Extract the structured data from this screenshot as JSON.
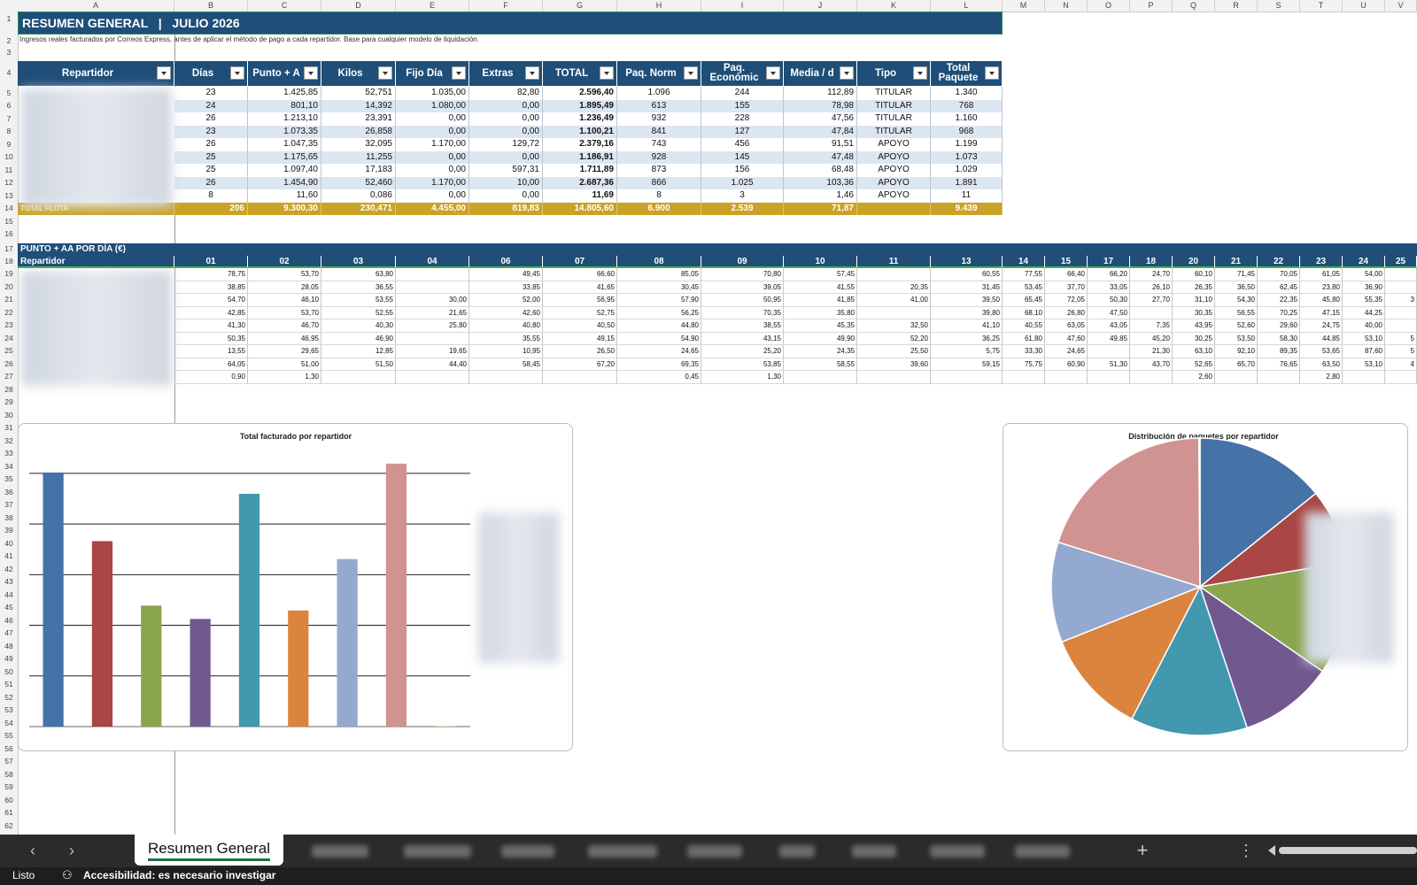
{
  "columns": [
    "A",
    "B",
    "C",
    "D",
    "E",
    "F",
    "G",
    "H",
    "I",
    "J",
    "K",
    "L",
    "M",
    "N",
    "O",
    "P",
    "Q",
    "R",
    "S",
    "T",
    "U",
    "V"
  ],
  "rows": [
    "1",
    "2",
    "3",
    "4",
    "5",
    "6",
    "7",
    "8",
    "9",
    "10",
    "11",
    "12",
    "13",
    "14",
    "15",
    "16",
    "17",
    "18",
    "19",
    "20",
    "21",
    "22",
    "23",
    "24",
    "25",
    "26",
    "27",
    "28",
    "29",
    "30",
    "31",
    "32",
    "33",
    "34",
    "35",
    "36",
    "37",
    "38",
    "39",
    "40",
    "41",
    "42",
    "43",
    "44",
    "45",
    "46",
    "47",
    "48",
    "49",
    "50",
    "51",
    "52",
    "53",
    "54",
    "55",
    "56",
    "57",
    "58",
    "59",
    "60",
    "61",
    "62"
  ],
  "banner": {
    "title": "RESUMEN GENERAL   |   JULIO 2026"
  },
  "subtitle": "Ingresos reales facturados por Correos Express, antes de aplicar el método de pago a cada repartidor. Base para cualquier modelo de liquidación.",
  "summary_table": {
    "headers": [
      "Repartidor",
      "Días",
      "Punto + A",
      "Kilos",
      "Fijo Día",
      "Extras",
      "TOTAL",
      "Paq. Norm",
      "Paq.\nEconómic",
      "Media / d",
      "Tipo",
      "Total\nPaquete"
    ],
    "rows": [
      [
        "23",
        "1.425,85",
        "52,751",
        "1.035,00",
        "82,80",
        "2.596,40",
        "1.096",
        "244",
        "112,89",
        "TITULAR",
        "1.340"
      ],
      [
        "24",
        "801,10",
        "14,392",
        "1.080,00",
        "0,00",
        "1.895,49",
        "613",
        "155",
        "78,98",
        "TITULAR",
        "768"
      ],
      [
        "26",
        "1.213,10",
        "23,391",
        "0,00",
        "0,00",
        "1.236,49",
        "932",
        "228",
        "47,56",
        "TITULAR",
        "1.160"
      ],
      [
        "23",
        "1.073,35",
        "26,858",
        "0,00",
        "0,00",
        "1.100,21",
        "841",
        "127",
        "47,84",
        "TITULAR",
        "968"
      ],
      [
        "26",
        "1.047,35",
        "32,095",
        "1.170,00",
        "129,72",
        "2.379,16",
        "743",
        "456",
        "91,51",
        "APOYO",
        "1.199"
      ],
      [
        "25",
        "1.175,65",
        "11,255",
        "0,00",
        "0,00",
        "1.186,91",
        "928",
        "145",
        "47,48",
        "APOYO",
        "1.073"
      ],
      [
        "25",
        "1.097,40",
        "17,183",
        "0,00",
        "597,31",
        "1.711,89",
        "873",
        "156",
        "68,48",
        "APOYO",
        "1.029"
      ],
      [
        "26",
        "1.454,90",
        "52,460",
        "1.170,00",
        "10,00",
        "2.687,36",
        "866",
        "1.025",
        "103,36",
        "APOYO",
        "1.891"
      ],
      [
        "8",
        "11,60",
        "0,086",
        "0,00",
        "0,00",
        "11,69",
        "8",
        "3",
        "1,46",
        "APOYO",
        "11"
      ]
    ],
    "total": [
      "TOTAL FLOTA",
      "206",
      "9.300,30",
      "230,471",
      "4.455,00",
      "819,83",
      "14.805,60",
      "6.900",
      "2.539",
      "71,87",
      "",
      "9.439"
    ]
  },
  "daily_section": {
    "title": "PUNTO + AA POR DÍA (€)",
    "header_label": "Repartidor",
    "days": [
      "01",
      "02",
      "03",
      "04",
      "06",
      "07",
      "08",
      "09",
      "10",
      "11",
      "13",
      "14",
      "15",
      "17",
      "18",
      "20",
      "21",
      "22",
      "23",
      "24",
      "25"
    ],
    "rows": [
      [
        "78,75",
        "53,70",
        "63,80",
        "",
        "49,45",
        "66,60",
        "85,05",
        "70,80",
        "57,45",
        "",
        "60,55",
        "77,55",
        "66,40",
        "66,20",
        "24,70",
        "60,10",
        "71,45",
        "70,05",
        "61,05",
        "54,00",
        ""
      ],
      [
        "38,85",
        "28,05",
        "36,55",
        "",
        "33,85",
        "41,65",
        "30,45",
        "39,05",
        "41,55",
        "20,35",
        "31,45",
        "53,45",
        "37,70",
        "33,05",
        "26,10",
        "26,35",
        "36,50",
        "62,45",
        "23,80",
        "36,90",
        ""
      ],
      [
        "54,70",
        "46,10",
        "53,55",
        "30,00",
        "52,00",
        "56,95",
        "57,90",
        "50,95",
        "41,85",
        "41,00",
        "39,50",
        "65,45",
        "72,05",
        "50,30",
        "27,70",
        "31,10",
        "54,30",
        "22,35",
        "45,80",
        "55,35",
        "3"
      ],
      [
        "42,85",
        "53,70",
        "52,55",
        "21,65",
        "42,60",
        "52,75",
        "56,25",
        "70,35",
        "35,80",
        "",
        "39,80",
        "68,10",
        "26,80",
        "47,50",
        "",
        "30,35",
        "56,55",
        "70,25",
        "47,15",
        "44,25",
        ""
      ],
      [
        "41,30",
        "46,70",
        "40,30",
        "25,80",
        "40,80",
        "40,50",
        "44,80",
        "38,55",
        "45,35",
        "32,50",
        "41,10",
        "40,55",
        "63,05",
        "43,05",
        "7,35",
        "43,95",
        "52,60",
        "29,60",
        "24,75",
        "40,00",
        ""
      ],
      [
        "50,35",
        "46,95",
        "46,90",
        "",
        "35,55",
        "49,15",
        "54,90",
        "43,15",
        "49,90",
        "52,20",
        "36,25",
        "61,80",
        "47,60",
        "49,85",
        "45,20",
        "30,25",
        "53,50",
        "58,30",
        "44,85",
        "53,10",
        "5"
      ],
      [
        "13,55",
        "29,65",
        "12,85",
        "19,65",
        "10,95",
        "26,50",
        "24,65",
        "25,20",
        "24,35",
        "25,50",
        "5,75",
        "33,30",
        "24,65",
        "",
        "21,30",
        "63,10",
        "92,10",
        "89,35",
        "53,65",
        "87,60",
        "5"
      ],
      [
        "64,05",
        "51,00",
        "51,50",
        "44,40",
        "58,45",
        "67,20",
        "69,35",
        "53,85",
        "58,55",
        "39,60",
        "59,15",
        "75,75",
        "60,90",
        "51,30",
        "43,70",
        "52,65",
        "65,70",
        "76,65",
        "63,50",
        "53,10",
        "4"
      ],
      [
        "0,90",
        "1,30",
        "",
        "",
        "",
        "",
        "0,45",
        "1,30",
        "",
        "",
        "",
        "",
        "",
        "",
        "",
        "2,60",
        "",
        "",
        "2,80",
        "",
        ""
      ]
    ]
  },
  "chart_data": [
    {
      "type": "bar",
      "title": "Total facturado por repartidor",
      "values": [
        2596.4,
        1895.49,
        1236.49,
        1100.21,
        2379.16,
        1186.91,
        1711.89,
        2687.36,
        11.69
      ],
      "colors": [
        "#4572a7",
        "#aa4643",
        "#89a54e",
        "#71588f",
        "#4198af",
        "#db843d",
        "#93a9cf",
        "#d19392",
        "#e8e0b8"
      ],
      "grid": true,
      "legend": "right"
    },
    {
      "type": "pie",
      "title": "Distribución de paquetes por repartidor",
      "values": [
        1340,
        768,
        1160,
        968,
        1199,
        1073,
        1029,
        1891,
        11
      ],
      "colors": [
        "#4572a7",
        "#aa4643",
        "#89a54e",
        "#71588f",
        "#4198af",
        "#db843d",
        "#93a9cf",
        "#d19392",
        "#e8e0b8"
      ],
      "legend": "right"
    }
  ],
  "sheet_tabs": {
    "active": "Resumen General",
    "add_icon": "plus-icon",
    "more_icon": "kebab-icon"
  },
  "status_bar": {
    "ready": "Listo",
    "accessibility": "Accesibilidad: es necesario investigar"
  },
  "colors": {
    "header_blue": "#1f4e79",
    "total_gold": "#c9a227",
    "row_alt": "#dce6f1"
  }
}
